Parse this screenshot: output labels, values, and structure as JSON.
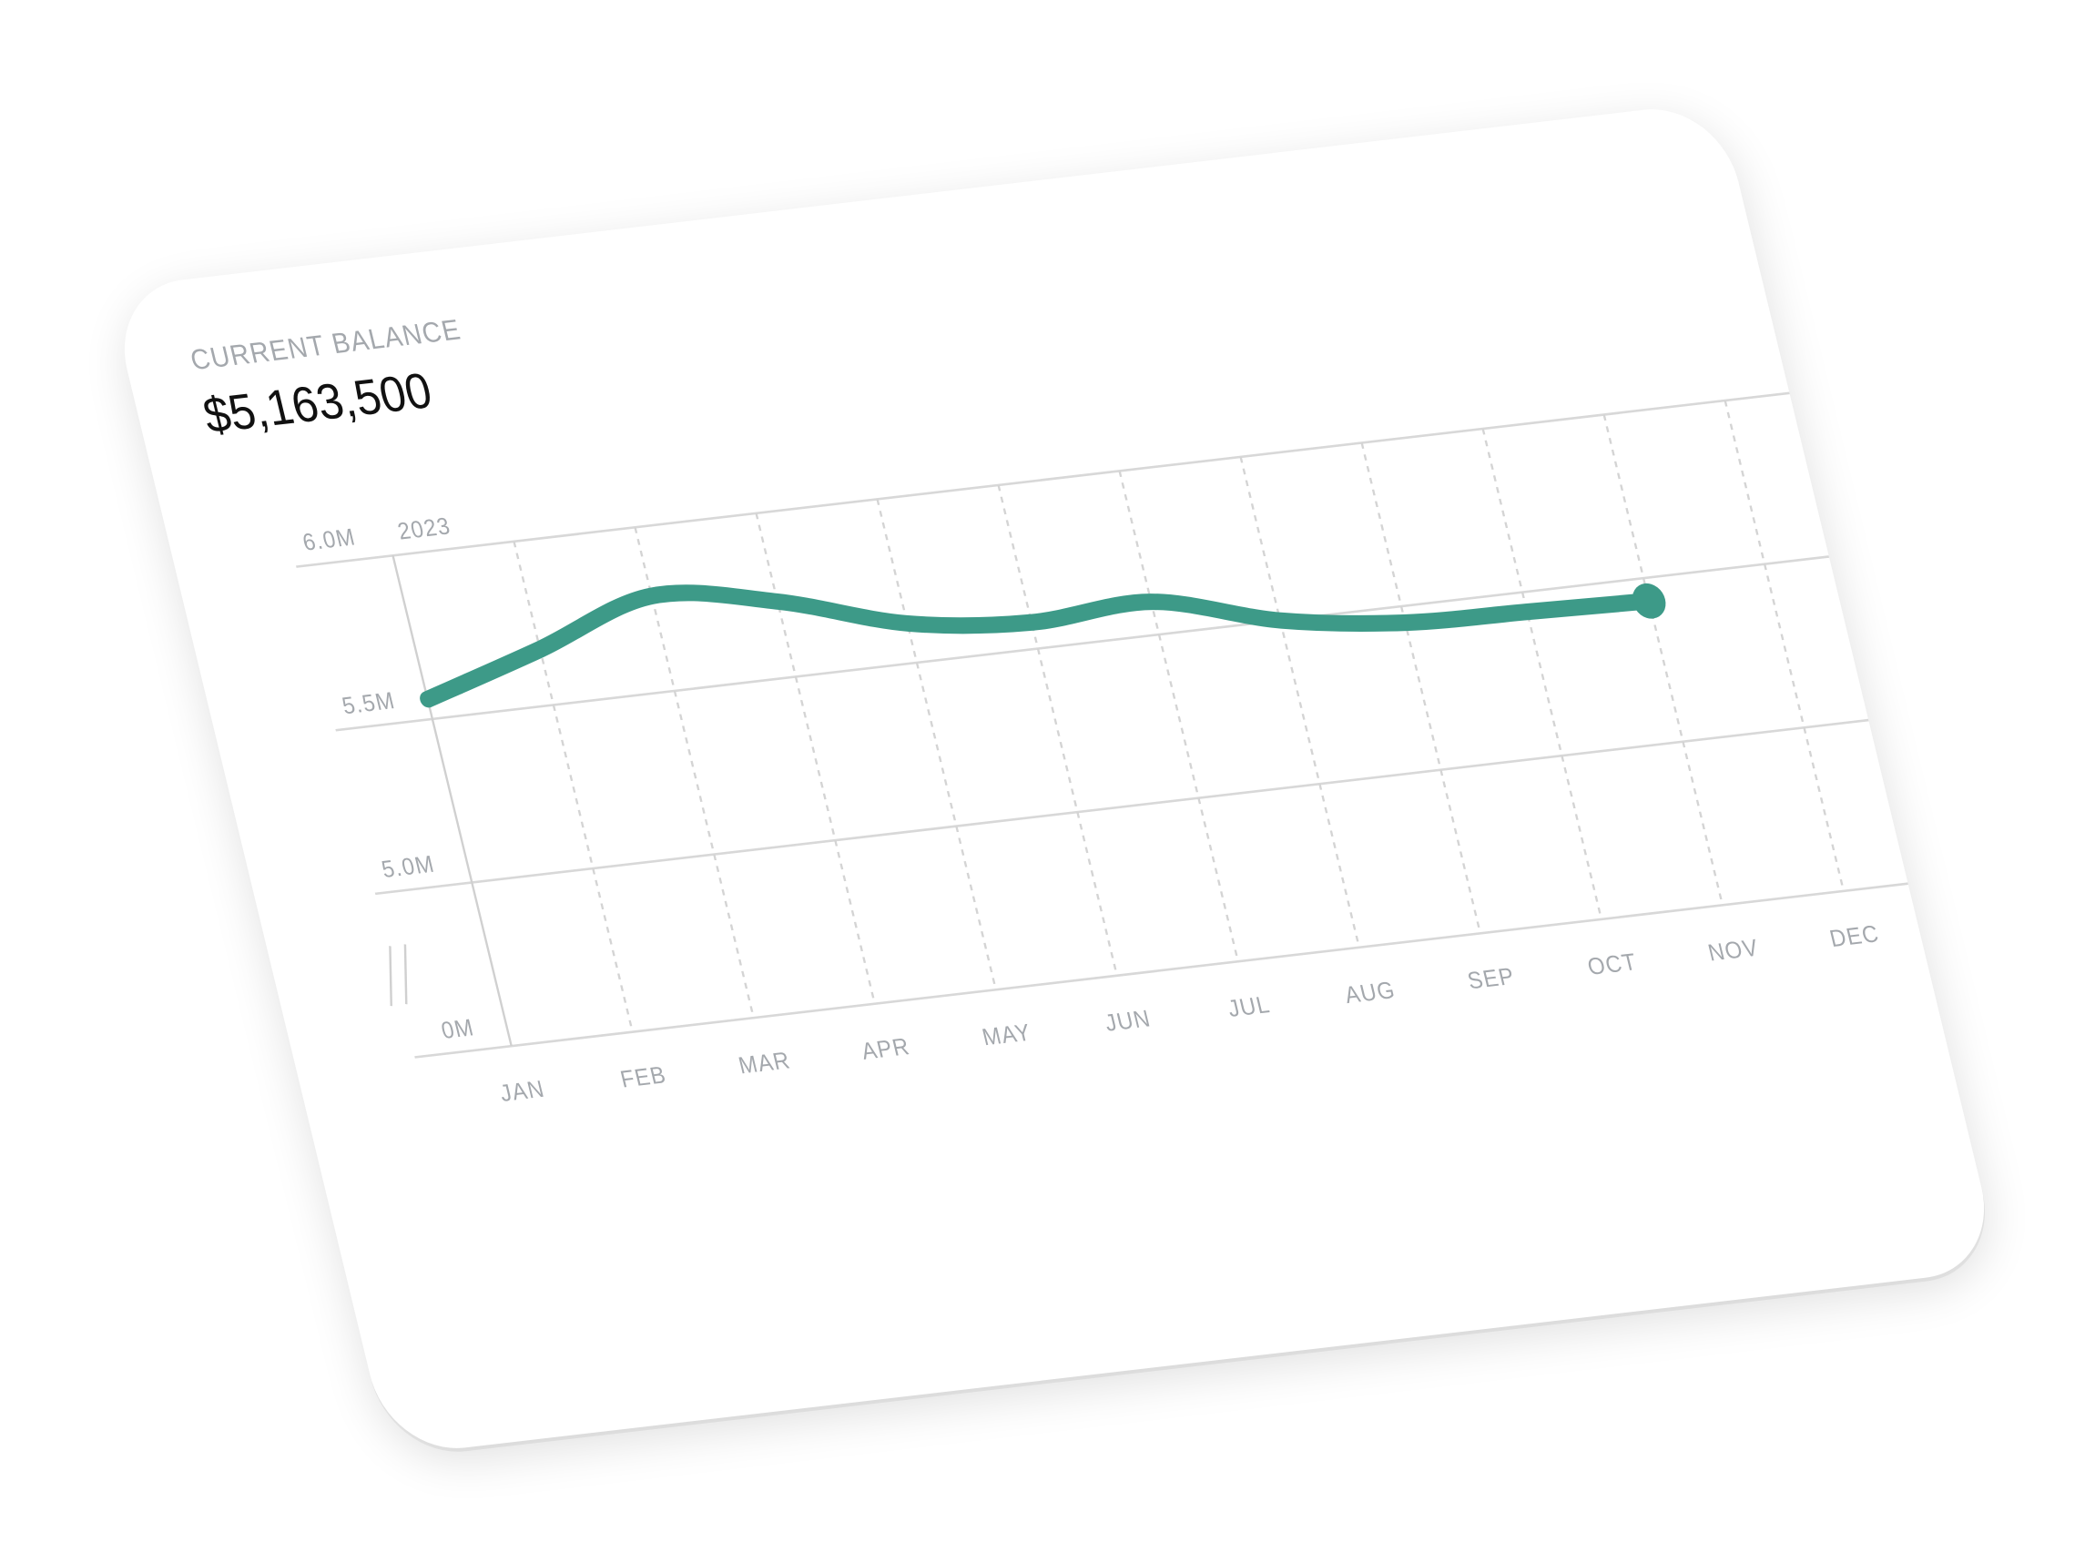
{
  "chart_data": {
    "type": "line",
    "title": "CURRENT BALANCE",
    "subtitle": "$5,163,500",
    "annotation": "2023",
    "categories": [
      "JAN",
      "FEB",
      "MAR",
      "APR",
      "MAY",
      "JUN",
      "JUL",
      "AUG",
      "SEP",
      "OCT",
      "NOV",
      "DEC"
    ],
    "series": [
      {
        "color": "#3d9a88",
        "values": [
          5.56,
          5.67,
          5.79,
          5.73,
          5.62,
          5.58,
          5.6,
          5.5,
          5.45,
          5.44,
          5.43,
          null
        ]
      }
    ],
    "ylim": [
      0,
      6
    ],
    "yticks": [
      {
        "value": 0,
        "label": "0M"
      },
      {
        "value": 5,
        "label": "5.0M"
      },
      {
        "value": 5.5,
        "label": "5.5M"
      },
      {
        "value": 6,
        "label": "6.0M"
      }
    ],
    "axis_break": true,
    "grid": true,
    "end_marker": true
  }
}
